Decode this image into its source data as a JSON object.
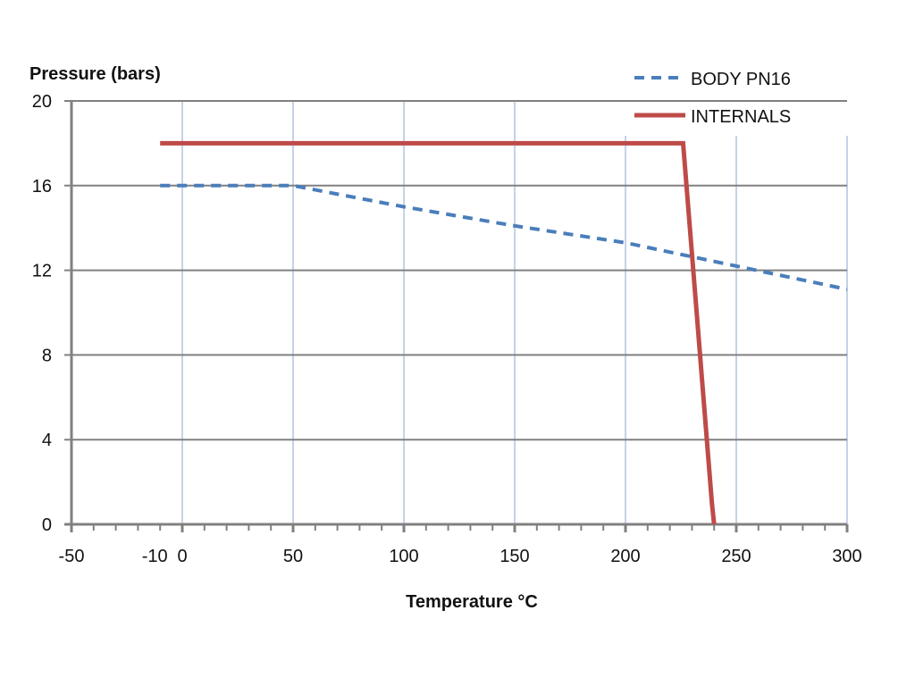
{
  "chart_data": {
    "type": "line",
    "title": "",
    "xlabel": "Temperature °C",
    "ylabel": "Pressure (bars)",
    "xlim": [
      -50,
      300
    ],
    "ylim": [
      0,
      20
    ],
    "x_ticks": [
      -50,
      -10,
      0,
      50,
      100,
      150,
      200,
      250,
      300
    ],
    "x_tick_labels": [
      "-50",
      "-10",
      "0",
      "50",
      "100",
      "150",
      "200",
      "250",
      "300"
    ],
    "y_ticks": [
      0,
      4,
      8,
      12,
      16,
      20
    ],
    "y_tick_labels": [
      "0",
      "4",
      "8",
      "12",
      "16",
      "20"
    ],
    "x_minor_tick_step": 10,
    "vertical_grid": [
      0,
      50,
      100,
      150,
      200,
      250,
      300
    ],
    "grid": true,
    "legend_position": "top-right",
    "series": [
      {
        "name": "BODY PN16",
        "style": "dashed",
        "color": "#4a7ebb",
        "points": [
          [
            -10,
            16
          ],
          [
            50,
            16
          ],
          [
            100,
            15
          ],
          [
            150,
            14.1
          ],
          [
            200,
            13.3
          ],
          [
            250,
            12.2
          ],
          [
            300,
            11.1
          ]
        ]
      },
      {
        "name": "INTERNALS",
        "style": "solid",
        "color": "#be4b48",
        "points": [
          [
            -10,
            18
          ],
          [
            226,
            18
          ],
          [
            239,
            1
          ],
          [
            240,
            0
          ]
        ]
      }
    ]
  }
}
